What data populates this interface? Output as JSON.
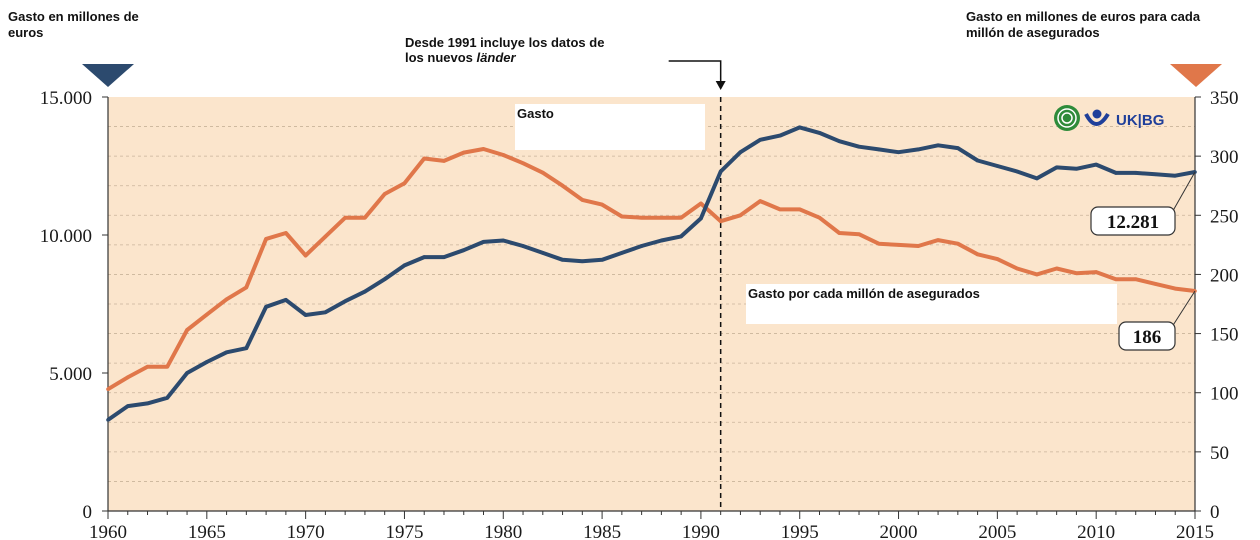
{
  "chart_data": {
    "type": "line",
    "x": [
      1960,
      1961,
      1962,
      1963,
      1964,
      1965,
      1966,
      1967,
      1968,
      1969,
      1970,
      1971,
      1972,
      1973,
      1974,
      1975,
      1976,
      1977,
      1978,
      1979,
      1980,
      1981,
      1982,
      1983,
      1984,
      1985,
      1986,
      1987,
      1988,
      1989,
      1990,
      1991,
      1992,
      1993,
      1994,
      1995,
      1996,
      1997,
      1998,
      1999,
      2000,
      2001,
      2002,
      2003,
      2004,
      2005,
      2006,
      2007,
      2008,
      2009,
      2010,
      2011,
      2012,
      2013,
      2014,
      2015
    ],
    "series": [
      {
        "name": "Gasto",
        "axis": "left",
        "color": "#2c4a6e",
        "values": [
          3300,
          3800,
          3900,
          4100,
          5000,
          5400,
          5750,
          5900,
          7400,
          7650,
          7100,
          7200,
          7600,
          7950,
          8400,
          8900,
          9200,
          9200,
          9450,
          9750,
          9800,
          9600,
          9350,
          9100,
          9050,
          9100,
          9350,
          9600,
          9800,
          9950,
          10600,
          12300,
          13000,
          13450,
          13600,
          13900,
          13700,
          13400,
          13200,
          13100,
          13000,
          13100,
          13250,
          13150,
          12700,
          12500,
          12300,
          12050,
          12450,
          12400,
          12550,
          12250,
          12250,
          12200,
          12150,
          12281
        ]
      },
      {
        "name": "Gasto por cada millón de asegurados",
        "axis": "right",
        "color": "#e0774a",
        "values": [
          103,
          113,
          122,
          122,
          153,
          166,
          179,
          189,
          230,
          235,
          216,
          232,
          248,
          248,
          268,
          277,
          298,
          296,
          303,
          306,
          301,
          294,
          286,
          275,
          263,
          259,
          249,
          248,
          248,
          248,
          260,
          245,
          250,
          262,
          255,
          255,
          248,
          235,
          234,
          226,
          225,
          224,
          229,
          226,
          217,
          213,
          205,
          200,
          205,
          201,
          202,
          196,
          196,
          192,
          188,
          186
        ]
      }
    ],
    "x_ticks": [
      "1960",
      "1965",
      "1970",
      "1975",
      "1980",
      "1985",
      "1990",
      "1995",
      "2000",
      "2005",
      "2010",
      "2015"
    ],
    "xlim": [
      1960,
      2015
    ],
    "y_left": {
      "label": "Gasto en millones de euros",
      "ylim": [
        0,
        15000
      ],
      "ticks": [
        "0",
        "5.000",
        "10.000",
        "15.000"
      ],
      "tick_values": [
        0,
        5000,
        10000,
        15000
      ]
    },
    "y_right": {
      "label": "Gasto en millones de euros para cada millón de asegurados",
      "ylim": [
        0,
        350
      ],
      "ticks": [
        "0",
        "50",
        "100",
        "150",
        "200",
        "250",
        "300",
        "350"
      ],
      "tick_values": [
        0,
        50,
        100,
        150,
        200,
        250,
        300,
        350
      ]
    },
    "divider_year": 1991,
    "annotation_divider_line1": "Desde 1991 incluye los datos de",
    "annotation_divider_line2_prefix": "los nuevos ",
    "annotation_divider_line2_italic": "länder",
    "label_series1": "Gasto",
    "label_series2": "Gasto por cada millón de asegurados",
    "callout_series1": "12.281",
    "callout_series2": "186",
    "grid": true,
    "background_color": "#fbe5cc",
    "left_marker_color": "#2c4a6e",
    "right_marker_color": "#e0774a"
  },
  "logo": {
    "text": "UK|BG",
    "color": "#1f3f9a",
    "icon1": "leaf-circle-icon",
    "icon2": "person-arc-icon"
  }
}
